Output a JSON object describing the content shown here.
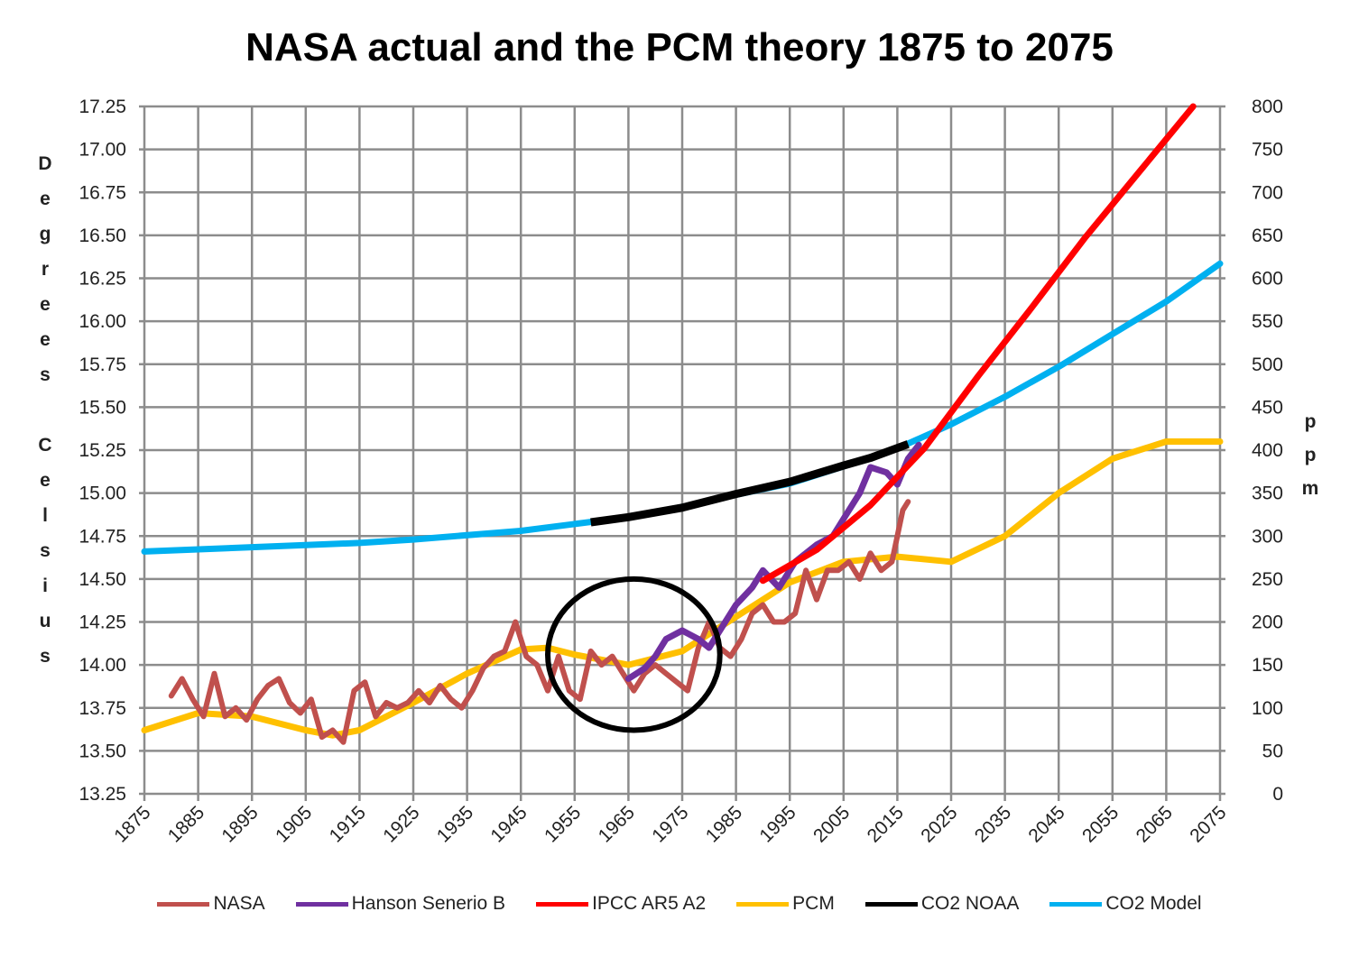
{
  "chart_data": {
    "type": "line",
    "title": "NASA actual and the PCM theory 1875 to 2075",
    "ylabel": "Degrees Celsius",
    "ylabel_right": "ppm",
    "xlabel": "",
    "xlim": [
      1875,
      2075
    ],
    "ylim": [
      13.25,
      17.25
    ],
    "ylim_right": [
      0,
      800
    ],
    "x_ticks": [
      "1875",
      "1885",
      "1895",
      "1905",
      "1915",
      "1925",
      "1935",
      "1945",
      "1955",
      "1965",
      "1975",
      "1985",
      "1995",
      "2005",
      "2015",
      "2025",
      "2035",
      "2045",
      "2055",
      "2065",
      "2075"
    ],
    "y_ticks": [
      "13.25",
      "13.50",
      "13.75",
      "14.00",
      "14.25",
      "14.50",
      "14.75",
      "15.00",
      "15.25",
      "15.50",
      "15.75",
      "16.00",
      "16.25",
      "16.50",
      "16.75",
      "17.00",
      "17.25"
    ],
    "y_ticks_right": [
      "0",
      "50",
      "100",
      "150",
      "200",
      "250",
      "300",
      "350",
      "400",
      "450",
      "500",
      "550",
      "600",
      "650",
      "700",
      "750",
      "800"
    ],
    "grid": true,
    "legend_position": "bottom",
    "series": [
      {
        "name": "NASA",
        "axis": "left",
        "color": "#c0504d",
        "x": [
          1880,
          1882,
          1884,
          1886,
          1888,
          1890,
          1892,
          1894,
          1896,
          1898,
          1900,
          1902,
          1904,
          1906,
          1908,
          1910,
          1912,
          1914,
          1916,
          1918,
          1920,
          1922,
          1924,
          1926,
          1928,
          1930,
          1932,
          1934,
          1936,
          1938,
          1940,
          1942,
          1944,
          1946,
          1948,
          1950,
          1952,
          1954,
          1956,
          1958,
          1960,
          1962,
          1964,
          1966,
          1968,
          1970,
          1972,
          1974,
          1976,
          1978,
          1980,
          1982,
          1984,
          1986,
          1988,
          1990,
          1992,
          1994,
          1996,
          1998,
          2000,
          2002,
          2004,
          2006,
          2008,
          2010,
          2012,
          2014,
          2016,
          2017
        ],
        "y": [
          13.82,
          13.92,
          13.8,
          13.7,
          13.95,
          13.7,
          13.75,
          13.68,
          13.8,
          13.88,
          13.92,
          13.78,
          13.72,
          13.8,
          13.58,
          13.62,
          13.55,
          13.85,
          13.9,
          13.7,
          13.78,
          13.75,
          13.78,
          13.85,
          13.78,
          13.88,
          13.8,
          13.75,
          13.85,
          13.98,
          14.05,
          14.08,
          14.25,
          14.05,
          14.0,
          13.85,
          14.05,
          13.85,
          13.8,
          14.08,
          14.0,
          14.05,
          13.95,
          13.85,
          13.95,
          14.0,
          13.95,
          13.9,
          13.85,
          14.1,
          14.25,
          14.1,
          14.05,
          14.15,
          14.3,
          14.35,
          14.25,
          14.25,
          14.3,
          14.55,
          14.38,
          14.55,
          14.55,
          14.6,
          14.5,
          14.65,
          14.55,
          14.6,
          14.9,
          14.95
        ]
      },
      {
        "name": "Hanson Senerio B",
        "axis": "left",
        "color": "#7030a0",
        "x": [
          1965,
          1968,
          1970,
          1972,
          1975,
          1978,
          1980,
          1983,
          1985,
          1988,
          1990,
          1993,
          1996,
          2000,
          2003,
          2005,
          2008,
          2010,
          2013,
          2015,
          2017,
          2019
        ],
        "y": [
          13.92,
          13.98,
          14.05,
          14.15,
          14.2,
          14.15,
          14.1,
          14.25,
          14.35,
          14.45,
          14.55,
          14.45,
          14.6,
          14.7,
          14.75,
          14.85,
          15.0,
          15.15,
          15.12,
          15.05,
          15.2,
          15.28
        ]
      },
      {
        "name": "IPCC AR5 A2",
        "axis": "left",
        "color": "#ff0000",
        "x": [
          1990,
          2000,
          2010,
          2020,
          2030,
          2040,
          2050,
          2060,
          2070
        ],
        "y": [
          14.49,
          14.67,
          14.93,
          15.26,
          15.68,
          16.08,
          16.49,
          16.87,
          17.25
        ]
      },
      {
        "name": "PCM",
        "axis": "left",
        "color": "#ffc000",
        "x": [
          1875,
          1885,
          1895,
          1905,
          1910,
          1915,
          1925,
          1935,
          1945,
          1950,
          1955,
          1965,
          1975,
          1985,
          1995,
          2005,
          2015,
          2025,
          2035,
          2045,
          2055,
          2065,
          2075
        ],
        "y": [
          13.62,
          13.72,
          13.7,
          13.62,
          13.59,
          13.62,
          13.78,
          13.95,
          14.09,
          14.1,
          14.06,
          14.0,
          14.08,
          14.28,
          14.48,
          14.6,
          14.63,
          14.6,
          14.75,
          15.0,
          15.2,
          15.3,
          15.3
        ]
      },
      {
        "name": "CO2 NOAA",
        "axis": "right",
        "color": "#000000",
        "x": [
          1958,
          1965,
          1975,
          1985,
          1995,
          2005,
          2010,
          2017
        ],
        "y": [
          316,
          322,
          333,
          349,
          363,
          382,
          391,
          407
        ]
      },
      {
        "name": "CO2 Model",
        "axis": "right",
        "color": "#00b0f0",
        "x": [
          1875,
          1895,
          1915,
          1925,
          1945,
          1955,
          1965,
          1975,
          1985,
          1995,
          2005,
          2015,
          2025,
          2035,
          2045,
          2055,
          2065,
          2075
        ],
        "y": [
          282,
          287,
          292,
          296,
          306,
          314,
          322,
          334,
          348,
          361,
          381,
          402,
          430,
          462,
          497,
          535,
          573,
          617
        ]
      }
    ],
    "annotations": [
      {
        "type": "circle",
        "color": "#000000",
        "center_x": 1966,
        "center_y": 14.06,
        "radius_x_years": 16,
        "radius_y_degrees": 0.44
      }
    ]
  }
}
